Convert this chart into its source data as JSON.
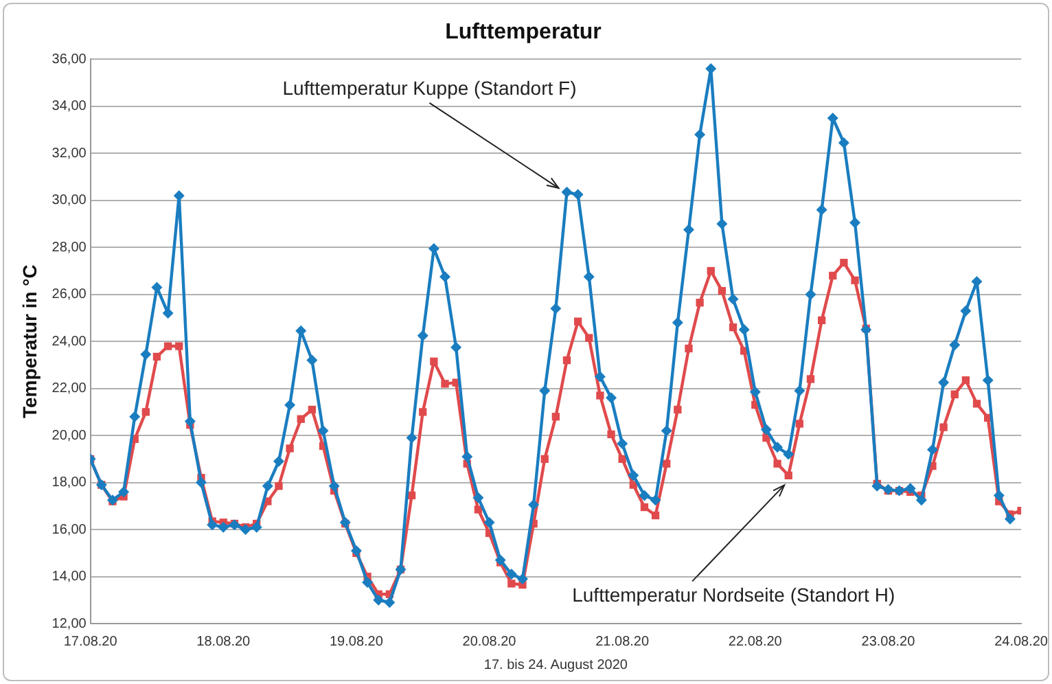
{
  "chart_data": {
    "type": "line",
    "title": "Lufttemperatur",
    "xlabel": "17. bis 24. August 2020",
    "ylabel": "Temperatur in °C",
    "x": [
      "2020-08-17T00:00",
      "2020-08-17T02:00",
      "2020-08-17T04:00",
      "2020-08-17T06:00",
      "2020-08-17T08:00",
      "2020-08-17T10:00",
      "2020-08-17T12:00",
      "2020-08-17T14:00",
      "2020-08-17T16:00",
      "2020-08-17T18:00",
      "2020-08-17T20:00",
      "2020-08-17T22:00",
      "2020-08-18T00:00",
      "2020-08-18T02:00",
      "2020-08-18T04:00",
      "2020-08-18T06:00",
      "2020-08-18T08:00",
      "2020-08-18T10:00",
      "2020-08-18T12:00",
      "2020-08-18T14:00",
      "2020-08-18T16:00",
      "2020-08-18T18:00",
      "2020-08-18T20:00",
      "2020-08-18T22:00",
      "2020-08-19T00:00",
      "2020-08-19T02:00",
      "2020-08-19T04:00",
      "2020-08-19T06:00",
      "2020-08-19T08:00",
      "2020-08-19T10:00",
      "2020-08-19T12:00",
      "2020-08-19T14:00",
      "2020-08-19T16:00",
      "2020-08-19T18:00",
      "2020-08-19T20:00",
      "2020-08-19T22:00",
      "2020-08-20T00:00",
      "2020-08-20T02:00",
      "2020-08-20T04:00",
      "2020-08-20T06:00",
      "2020-08-20T08:00",
      "2020-08-20T10:00",
      "2020-08-20T12:00",
      "2020-08-20T14:00",
      "2020-08-20T16:00",
      "2020-08-20T18:00",
      "2020-08-20T20:00",
      "2020-08-20T22:00",
      "2020-08-21T00:00",
      "2020-08-21T02:00",
      "2020-08-21T04:00",
      "2020-08-21T06:00",
      "2020-08-21T08:00",
      "2020-08-21T10:00",
      "2020-08-21T12:00",
      "2020-08-21T14:00",
      "2020-08-21T16:00",
      "2020-08-21T18:00",
      "2020-08-21T20:00",
      "2020-08-21T22:00",
      "2020-08-22T00:00",
      "2020-08-22T02:00",
      "2020-08-22T04:00",
      "2020-08-22T06:00",
      "2020-08-22T08:00",
      "2020-08-22T10:00",
      "2020-08-22T12:00",
      "2020-08-22T14:00",
      "2020-08-22T16:00",
      "2020-08-22T18:00",
      "2020-08-22T20:00",
      "2020-08-22T22:00",
      "2020-08-23T00:00",
      "2020-08-23T02:00",
      "2020-08-23T04:00",
      "2020-08-23T06:00",
      "2020-08-23T08:00",
      "2020-08-23T10:00",
      "2020-08-23T12:00",
      "2020-08-23T14:00",
      "2020-08-23T16:00",
      "2020-08-23T18:00",
      "2020-08-23T20:00",
      "2020-08-23T22:00",
      "2020-08-24T00:00"
    ],
    "series": [
      {
        "name": "Lufttemperatur Kuppe (Standort F)",
        "color": "#1a7dc0",
        "marker": "diamond",
        "values": [
          19.0,
          17.9,
          17.25,
          17.6,
          20.8,
          23.45,
          26.3,
          25.2,
          30.2,
          20.6,
          18.0,
          16.2,
          16.1,
          16.2,
          16.0,
          16.1,
          17.85,
          18.9,
          21.3,
          24.45,
          23.2,
          20.2,
          17.85,
          16.3,
          15.1,
          13.75,
          13.0,
          12.9,
          14.3,
          19.9,
          24.25,
          27.95,
          26.75,
          23.75,
          19.1,
          17.35,
          16.3,
          14.7,
          14.1,
          13.9,
          17.05,
          21.9,
          25.4,
          30.35,
          30.25,
          26.75,
          22.5,
          21.6,
          19.65,
          18.3,
          17.45,
          17.25,
          20.2,
          24.8,
          28.75,
          32.8,
          35.6,
          29.0,
          25.8,
          24.5,
          21.85,
          20.25,
          19.5,
          19.2,
          21.9,
          26.0,
          29.6,
          33.5,
          32.45,
          29.05,
          24.5,
          17.85,
          17.7,
          17.65,
          17.75,
          17.25,
          19.4,
          22.25,
          23.85,
          25.3,
          26.55,
          22.35,
          17.45,
          16.45,
          null
        ]
      },
      {
        "name": "Lufttemperatur Nordseite (Standort H)",
        "color": "#e04a4c",
        "marker": "square",
        "values": [
          19.0,
          17.9,
          17.2,
          17.4,
          19.85,
          21.0,
          23.35,
          23.8,
          23.8,
          20.45,
          18.2,
          16.35,
          16.3,
          16.25,
          16.1,
          16.25,
          17.2,
          17.85,
          19.45,
          20.7,
          21.1,
          19.55,
          17.65,
          16.25,
          15.0,
          14.0,
          13.25,
          13.25,
          14.3,
          17.45,
          21.0,
          23.15,
          22.2,
          22.25,
          18.8,
          16.85,
          15.85,
          14.6,
          13.7,
          13.65,
          16.25,
          19.0,
          20.8,
          23.2,
          24.85,
          24.15,
          21.7,
          20.05,
          19.0,
          17.9,
          16.95,
          16.6,
          18.8,
          21.1,
          23.7,
          25.65,
          27.0,
          26.15,
          24.6,
          23.6,
          21.3,
          19.9,
          18.8,
          18.3,
          20.5,
          22.4,
          24.9,
          26.8,
          27.35,
          26.6,
          24.55,
          17.95,
          17.65,
          17.65,
          17.6,
          17.45,
          18.7,
          20.35,
          21.75,
          22.35,
          21.35,
          20.75,
          17.2,
          16.65,
          16.8
        ]
      }
    ],
    "xlim": [
      "2020-08-17",
      "2020-08-24"
    ],
    "xticks": [
      {
        "value": "2020-08-17",
        "label": "17.08.20"
      },
      {
        "value": "2020-08-18",
        "label": "18.08.20"
      },
      {
        "value": "2020-08-19",
        "label": "19.08.20"
      },
      {
        "value": "2020-08-20",
        "label": "20.08.20"
      },
      {
        "value": "2020-08-21",
        "label": "21.08.20"
      },
      {
        "value": "2020-08-22",
        "label": "22.08.20"
      },
      {
        "value": "2020-08-23",
        "label": "23.08.20"
      },
      {
        "value": "2020-08-24",
        "label": "24.08.20"
      }
    ],
    "ylim": [
      12,
      36
    ],
    "yticks": [
      {
        "value": 12,
        "label": "12,00"
      },
      {
        "value": 14,
        "label": "14,00"
      },
      {
        "value": 16,
        "label": "16,00"
      },
      {
        "value": 18,
        "label": "18,00"
      },
      {
        "value": 20,
        "label": "20,00"
      },
      {
        "value": 22,
        "label": "22,00"
      },
      {
        "value": 24,
        "label": "24,00"
      },
      {
        "value": 26,
        "label": "26,00"
      },
      {
        "value": 28,
        "label": "28,00"
      },
      {
        "value": 30,
        "label": "30,00"
      },
      {
        "value": 32,
        "label": "32,00"
      },
      {
        "value": 34,
        "label": "34,00"
      },
      {
        "value": 36,
        "label": "36,00"
      }
    ],
    "grid": "y",
    "legend": false,
    "line_style": "solid"
  }
}
